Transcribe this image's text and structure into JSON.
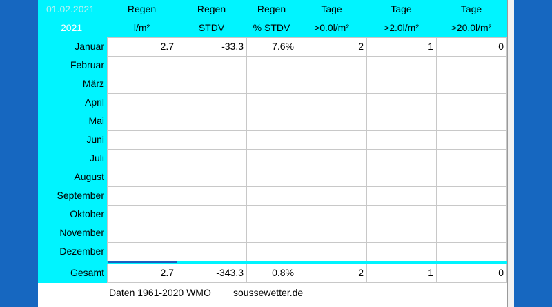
{
  "header": {
    "date": "01.02.2021",
    "year": "2021",
    "columns": [
      {
        "line1": "Regen",
        "line2": "l/m²"
      },
      {
        "line1": "Regen",
        "line2": "STDV"
      },
      {
        "line1": "Regen",
        "line2": "% STDV"
      },
      {
        "line1": "Tage",
        "line2": ">0.0l/m²"
      },
      {
        "line1": "Tage",
        "line2": ">2.0l/m²"
      },
      {
        "line1": "Tage",
        "line2": ">20.0l/m²"
      }
    ]
  },
  "table": {
    "rows": [
      {
        "label": "Januar",
        "cells": [
          "2.7",
          "-33.3",
          "7.6%",
          "2",
          "1",
          "0"
        ]
      },
      {
        "label": "Februar"
      },
      {
        "label": "März"
      },
      {
        "label": "April"
      },
      {
        "label": "Mai"
      },
      {
        "label": "Juni"
      },
      {
        "label": "Juli"
      },
      {
        "label": "August"
      },
      {
        "label": "September"
      },
      {
        "label": "Oktober"
      },
      {
        "label": "November"
      },
      {
        "label": "Dezember"
      }
    ],
    "total": {
      "label": "Gesamt",
      "cells": [
        "2.7",
        "-343.3",
        "0.8%",
        "2",
        "1",
        "0"
      ]
    }
  },
  "footer": {
    "source": "Daten 1961-2020 WMO",
    "site": "soussewetter.de"
  }
}
